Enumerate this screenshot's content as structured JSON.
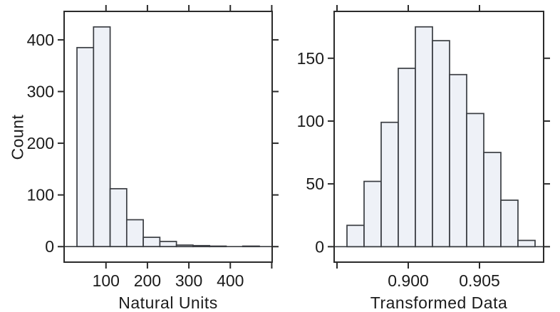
{
  "figure": {
    "ylabel": "Count",
    "colors": {
      "background": "#ffffff",
      "bar_fill": "#eef1f7",
      "bar_stroke": "#3a3d42",
      "axis": "#2b2b2b",
      "text": "#1b1b1b"
    }
  },
  "chart_data": [
    {
      "type": "bar",
      "subtype": "histogram",
      "title": "",
      "xlabel": "Natural Units",
      "ylabel": "Count",
      "xlim": [
        -1,
        501
      ],
      "ylim": [
        -30,
        455
      ],
      "grid": false,
      "legend": null,
      "x_ticks": [
        {
          "value": 100,
          "label": "100"
        },
        {
          "value": 200,
          "label": "200"
        },
        {
          "value": 300,
          "label": "300"
        },
        {
          "value": 400,
          "label": "400"
        },
        {
          "value": 500,
          "label": ""
        }
      ],
      "y_ticks": [
        {
          "value": 0,
          "label": "0"
        },
        {
          "value": 100,
          "label": "100"
        },
        {
          "value": 200,
          "label": "200"
        },
        {
          "value": 300,
          "label": "300"
        },
        {
          "value": 400,
          "label": "400"
        }
      ],
      "bins": {
        "start": 30,
        "width": 40
      },
      "counts": [
        385,
        425,
        112,
        52,
        18,
        10,
        3,
        2,
        1,
        0,
        1
      ]
    },
    {
      "type": "bar",
      "subtype": "histogram",
      "title": "",
      "xlabel": "Transformed Data",
      "ylabel": "Count",
      "xlim": [
        0.8948,
        0.9095
      ],
      "ylim": [
        -12.3,
        187.3
      ],
      "grid": false,
      "legend": null,
      "x_ticks": [
        {
          "value": 0.895,
          "label": ""
        },
        {
          "value": 0.9,
          "label": "0.900"
        },
        {
          "value": 0.905,
          "label": "0.905"
        }
      ],
      "y_ticks": [
        {
          "value": 0,
          "label": "0"
        },
        {
          "value": 50,
          "label": "50"
        },
        {
          "value": 100,
          "label": "100"
        },
        {
          "value": 150,
          "label": "150"
        }
      ],
      "bins": {
        "start": 0.8957,
        "width": 0.0012
      },
      "counts": [
        17,
        52,
        99,
        142,
        175,
        164,
        137,
        106,
        75,
        37,
        5
      ]
    }
  ]
}
